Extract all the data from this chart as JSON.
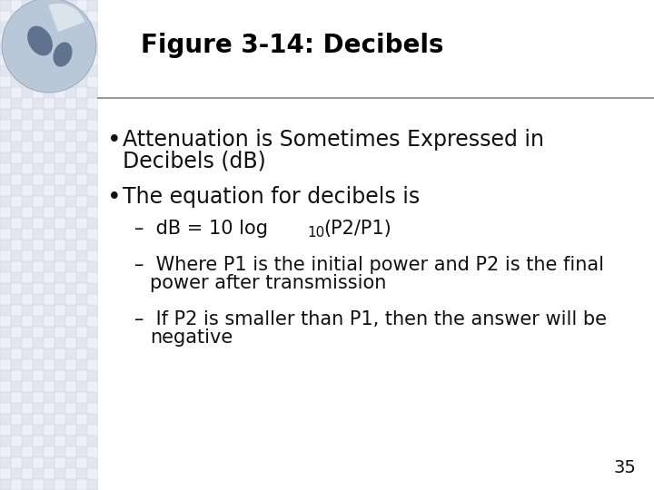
{
  "title": "Figure 3-14: Decibels",
  "title_fontsize": 20,
  "title_color": "#000000",
  "bg_color": "#ffffff",
  "header_line_color": "#999999",
  "bullet1_line1": "Attenuation is Sometimes Expressed in",
  "bullet1_line2": "Decibels (dB)",
  "bullet2": "The equation for decibels is",
  "sub1_prefix": "–  dB = 10 log",
  "sub1_sub": "10",
  "sub1_suffix": "(P2/P1)",
  "sub2_line1": "–  Where P1 is the initial power and P2 is the final",
  "sub2_line2": "   power after transmission",
  "sub3_line1": "–  If P2 is smaller than P1, then the answer will be",
  "sub3_line2": "   negative",
  "page_number": "35",
  "bullet_fontsize": 17,
  "sub_fontsize": 15,
  "page_fontsize": 14,
  "text_color": "#111111",
  "grid_color": "#d8dde8",
  "grid_bg": "#edf0f7"
}
